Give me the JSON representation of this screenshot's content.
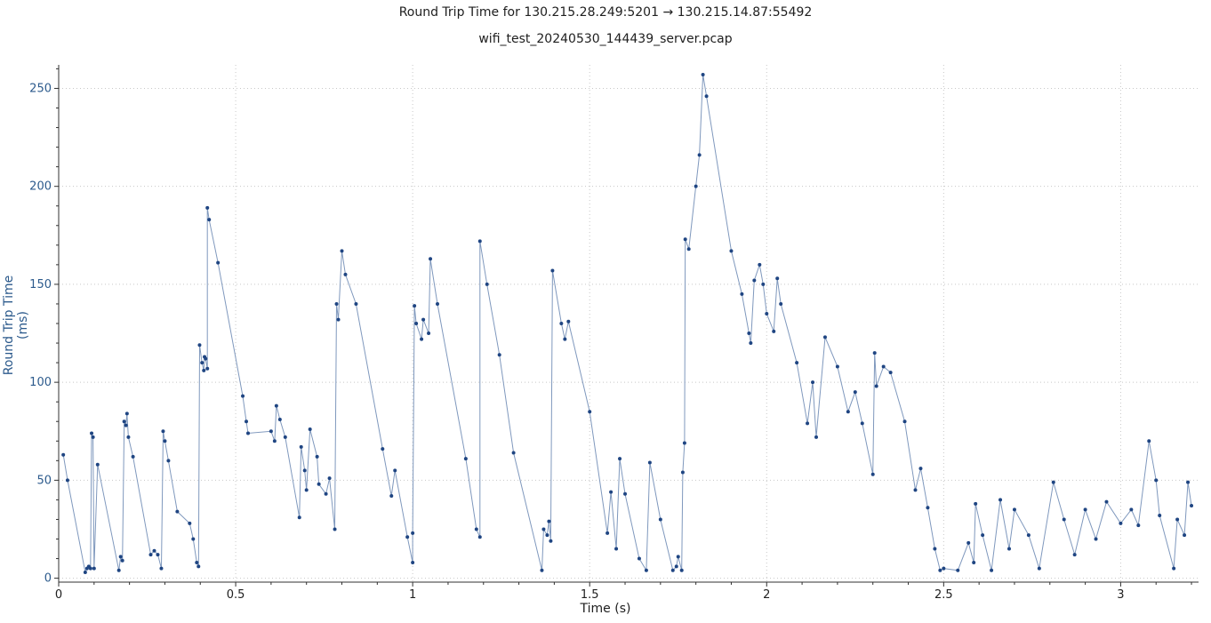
{
  "chart_data": {
    "type": "scatter",
    "title": "Round Trip Time for 130.215.28.249:5201 → 130.215.14.87:55492",
    "subtitle": "wifi_test_20240530_144439_server.pcap",
    "xlabel": "Time (s)",
    "ylabel": "Round Trip Time (ms)",
    "xlim": [
      0,
      3.22
    ],
    "ylim": [
      -2,
      262
    ],
    "xticks": [
      0,
      0.5,
      1,
      1.5,
      2,
      2.5,
      3
    ],
    "xtick_labels": [
      "0",
      "0.5",
      "1",
      "1.5",
      "2",
      "2.5",
      "3"
    ],
    "yticks": [
      0,
      50,
      100,
      150,
      200,
      250
    ],
    "ytick_labels": [
      "0",
      "50",
      "100",
      "150",
      "200",
      "250"
    ],
    "grid": true,
    "colors": {
      "marker": "#1f4582",
      "line": "#7f98bd",
      "ylabel": "#2c5a8c",
      "grid": "#c8c8c8"
    },
    "series": [
      {
        "points": [
          [
            0.013,
            63
          ],
          [
            0.025,
            50
          ],
          [
            0.075,
            3
          ],
          [
            0.08,
            5
          ],
          [
            0.085,
            6
          ],
          [
            0.09,
            5
          ],
          [
            0.093,
            74
          ],
          [
            0.097,
            72
          ],
          [
            0.1,
            5
          ],
          [
            0.11,
            58
          ],
          [
            0.17,
            4
          ],
          [
            0.175,
            11
          ],
          [
            0.18,
            9
          ],
          [
            0.185,
            80
          ],
          [
            0.19,
            78
          ],
          [
            0.193,
            84
          ],
          [
            0.197,
            72
          ],
          [
            0.21,
            62
          ],
          [
            0.26,
            12
          ],
          [
            0.27,
            14
          ],
          [
            0.28,
            12
          ],
          [
            0.29,
            5
          ],
          [
            0.295,
            75
          ],
          [
            0.3,
            70
          ],
          [
            0.31,
            60
          ],
          [
            0.335,
            34
          ],
          [
            0.37,
            28
          ],
          [
            0.38,
            20
          ],
          [
            0.39,
            8
          ],
          [
            0.395,
            6
          ],
          [
            0.398,
            119
          ],
          [
            0.405,
            110
          ],
          [
            0.41,
            106
          ],
          [
            0.412,
            113
          ],
          [
            0.415,
            112
          ],
          [
            0.42,
            107
          ],
          [
            0.42,
            189
          ],
          [
            0.425,
            183
          ],
          [
            0.45,
            161
          ],
          [
            0.52,
            93
          ],
          [
            0.53,
            80
          ],
          [
            0.535,
            74
          ],
          [
            0.6,
            75
          ],
          [
            0.61,
            70
          ],
          [
            0.615,
            88
          ],
          [
            0.625,
            81
          ],
          [
            0.64,
            72
          ],
          [
            0.68,
            31
          ],
          [
            0.685,
            67
          ],
          [
            0.695,
            55
          ],
          [
            0.7,
            45
          ],
          [
            0.71,
            76
          ],
          [
            0.73,
            62
          ],
          [
            0.735,
            48
          ],
          [
            0.755,
            43
          ],
          [
            0.765,
            51
          ],
          [
            0.78,
            25
          ],
          [
            0.785,
            140
          ],
          [
            0.79,
            132
          ],
          [
            0.8,
            167
          ],
          [
            0.81,
            155
          ],
          [
            0.84,
            140
          ],
          [
            0.915,
            66
          ],
          [
            0.94,
            42
          ],
          [
            0.95,
            55
          ],
          [
            0.985,
            21
          ],
          [
            1.0,
            8
          ],
          [
            1.0,
            23
          ],
          [
            1.005,
            139
          ],
          [
            1.01,
            130
          ],
          [
            1.025,
            122
          ],
          [
            1.03,
            132
          ],
          [
            1.045,
            125
          ],
          [
            1.05,
            163
          ],
          [
            1.07,
            140
          ],
          [
            1.15,
            61
          ],
          [
            1.18,
            25
          ],
          [
            1.19,
            21
          ],
          [
            1.19,
            172
          ],
          [
            1.21,
            150
          ],
          [
            1.245,
            114
          ],
          [
            1.285,
            64
          ],
          [
            1.365,
            4
          ],
          [
            1.37,
            25
          ],
          [
            1.38,
            22
          ],
          [
            1.385,
            29
          ],
          [
            1.39,
            19
          ],
          [
            1.395,
            157
          ],
          [
            1.42,
            130
          ],
          [
            1.43,
            122
          ],
          [
            1.44,
            131
          ],
          [
            1.5,
            85
          ],
          [
            1.55,
            23
          ],
          [
            1.56,
            44
          ],
          [
            1.575,
            15
          ],
          [
            1.585,
            61
          ],
          [
            1.6,
            43
          ],
          [
            1.64,
            10
          ],
          [
            1.66,
            4
          ],
          [
            1.67,
            59
          ],
          [
            1.7,
            30
          ],
          [
            1.735,
            4
          ],
          [
            1.745,
            6
          ],
          [
            1.75,
            11
          ],
          [
            1.76,
            4
          ],
          [
            1.763,
            54
          ],
          [
            1.768,
            69
          ],
          [
            1.77,
            173
          ],
          [
            1.78,
            168
          ],
          [
            1.8,
            200
          ],
          [
            1.81,
            216
          ],
          [
            1.82,
            257
          ],
          [
            1.83,
            246
          ],
          [
            1.9,
            167
          ],
          [
            1.93,
            145
          ],
          [
            1.95,
            125
          ],
          [
            1.955,
            120
          ],
          [
            1.965,
            152
          ],
          [
            1.98,
            160
          ],
          [
            1.99,
            150
          ],
          [
            2.0,
            135
          ],
          [
            2.02,
            126
          ],
          [
            2.03,
            153
          ],
          [
            2.04,
            140
          ],
          [
            2.085,
            110
          ],
          [
            2.115,
            79
          ],
          [
            2.13,
            100
          ],
          [
            2.14,
            72
          ],
          [
            2.165,
            123
          ],
          [
            2.2,
            108
          ],
          [
            2.23,
            85
          ],
          [
            2.25,
            95
          ],
          [
            2.27,
            79
          ],
          [
            2.3,
            53
          ],
          [
            2.305,
            115
          ],
          [
            2.31,
            98
          ],
          [
            2.33,
            108
          ],
          [
            2.35,
            105
          ],
          [
            2.39,
            80
          ],
          [
            2.42,
            45
          ],
          [
            2.435,
            56
          ],
          [
            2.455,
            36
          ],
          [
            2.475,
            15
          ],
          [
            2.49,
            4
          ],
          [
            2.5,
            5
          ],
          [
            2.54,
            4
          ],
          [
            2.57,
            18
          ],
          [
            2.585,
            8
          ],
          [
            2.59,
            38
          ],
          [
            2.61,
            22
          ],
          [
            2.635,
            4
          ],
          [
            2.66,
            40
          ],
          [
            2.685,
            15
          ],
          [
            2.7,
            35
          ],
          [
            2.74,
            22
          ],
          [
            2.77,
            5
          ],
          [
            2.81,
            49
          ],
          [
            2.84,
            30
          ],
          [
            2.87,
            12
          ],
          [
            2.9,
            35
          ],
          [
            2.93,
            20
          ],
          [
            2.96,
            39
          ],
          [
            3.0,
            28
          ],
          [
            3.03,
            35
          ],
          [
            3.05,
            27
          ],
          [
            3.08,
            70
          ],
          [
            3.1,
            50
          ],
          [
            3.11,
            32
          ],
          [
            3.15,
            5
          ],
          [
            3.16,
            30
          ],
          [
            3.18,
            22
          ],
          [
            3.19,
            49
          ],
          [
            3.2,
            37
          ]
        ]
      }
    ]
  }
}
